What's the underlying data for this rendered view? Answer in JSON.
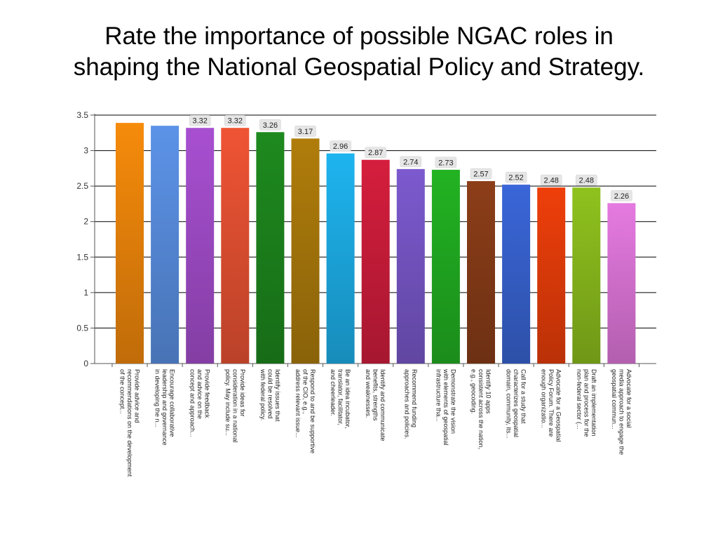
{
  "title": {
    "line1": "Rate the importance of possible NGAC roles in",
    "line2": "shaping the National Geospatial Policy and Strategy."
  },
  "chart_data": {
    "type": "bar",
    "ylim": [
      0,
      3.5
    ],
    "yticks": [
      0,
      0.5,
      1,
      1.5,
      2,
      2.5,
      3,
      3.5
    ],
    "ytick_labels": [
      "0",
      "0.5",
      "1",
      "1.5",
      "2",
      "2.5",
      "3",
      "3.5"
    ],
    "grid": "horizontal",
    "categories": [
      [
        "Provide advice and",
        "recommendations on the development",
        "of the concept..."
      ],
      [
        "Encourage collaborative",
        "leadership and governance",
        "in developing the n..."
      ],
      [
        "Provide feedback",
        "and advice on the",
        "concept and approach..."
      ],
      [
        "Provide ideas for",
        "consideration in a national",
        "policy.  May include su..."
      ],
      [
        "Identify issues that",
        "could be resolved",
        "with federal policy."
      ],
      [
        "Respond to and be supportive",
        "of the CIO, e.g.,",
        "address relevant issue..."
      ],
      [
        "Be an idea incubator,",
        "translator, facilitator,",
        "and cheerleader."
      ],
      [
        "Identify and communicate",
        "benefits, strengths",
        "and weaknesses."
      ],
      [
        "Recommend funding",
        "approaches and policies."
      ],
      [
        "Demonstrate the vision",
        "with elements of geospatial",
        "infrastructure tha..."
      ],
      [
        "Identify 10 apps",
        "consistent across the nation,",
        "e.g., geocoding."
      ],
      [
        "Call for a study that",
        "characterizes geospatial",
        "domain, community, its..."
      ],
      [
        "Advocate for a Geospatial",
        "Policy Forum.  There are",
        "enough organizatio..."
      ],
      [
        "Draft an implementation",
        "plan and process for the",
        "non-federal sector (..."
      ],
      [
        "Advocate for a social",
        "media approach to engage the",
        "geospatial commun..."
      ]
    ],
    "values": [
      3.39,
      3.35,
      3.32,
      3.32,
      3.26,
      3.17,
      2.96,
      2.87,
      2.74,
      2.73,
      2.57,
      2.52,
      2.48,
      2.48,
      2.26
    ],
    "data_labels": [
      "",
      "",
      "3.32",
      "3.32",
      "3.26",
      "3.17",
      "2.96",
      "2.87",
      "2.74",
      "2.73",
      "2.57",
      "2.52",
      "2.48",
      "2.48",
      "2.26"
    ],
    "colors": [
      "#f68b0b",
      "#5c93e8",
      "#a84fd1",
      "#ef5434",
      "#1e8a1e",
      "#b07d0b",
      "#1eb4ef",
      "#d51e3d",
      "#7c5acf",
      "#22b322",
      "#8c3e18",
      "#3a66d8",
      "#ef3f0a",
      "#8fc21e",
      "#e57ae0"
    ]
  }
}
